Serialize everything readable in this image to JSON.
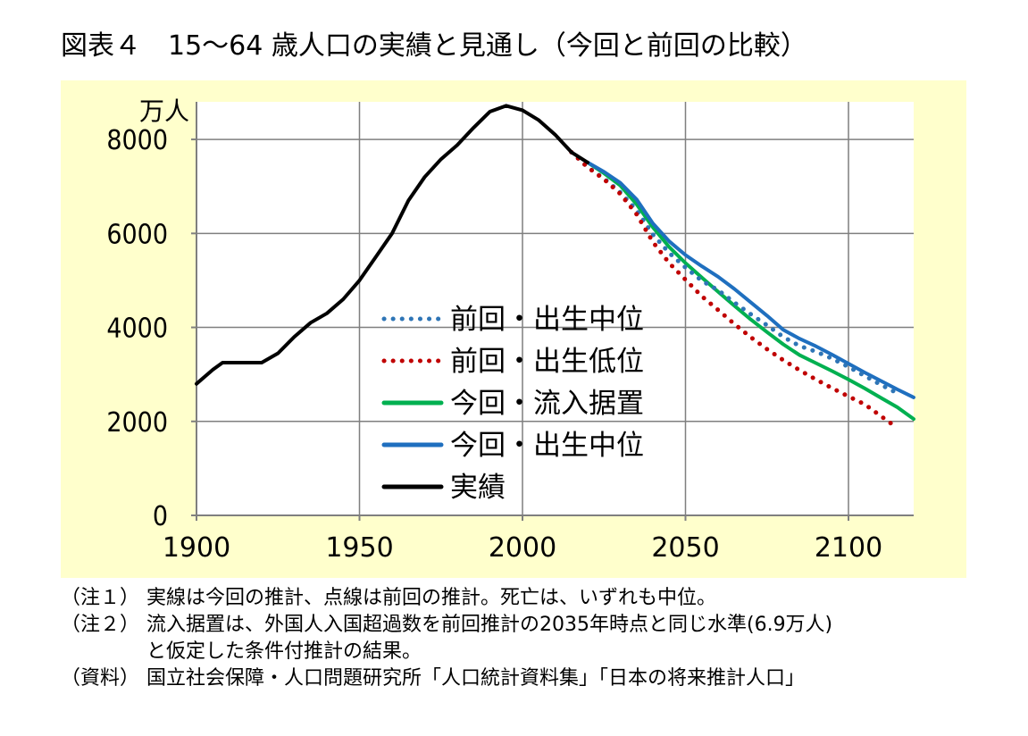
{
  "title": "図表４　15～64 歳人口の実績と見通し（今回と前回の比較）",
  "chart_data": {
    "type": "line",
    "title": "図表４　15～64 歳人口の実績と見通し（今回と前回の比較）",
    "ylabel": "万人",
    "xlim": [
      1900,
      2120
    ],
    "ylim": [
      0,
      8800
    ],
    "xticks": [
      1900,
      1950,
      2000,
      2050,
      2100
    ],
    "yticks": [
      0,
      2000,
      4000,
      6000,
      8000
    ],
    "grid": true,
    "legend_position": "center",
    "series": [
      {
        "name": "前回・出生中位",
        "style": "dotted",
        "color": "#2e75b6",
        "x": [
          2015,
          2020,
          2025,
          2030,
          2035,
          2040,
          2045,
          2050,
          2055,
          2060,
          2065,
          2070,
          2075,
          2080,
          2085,
          2090,
          2095,
          2100,
          2105,
          2110,
          2115
        ],
        "y": [
          7728,
          7406,
          7170,
          6875,
          6494,
          5978,
          5584,
          5275,
          4991,
          4793,
          4529,
          4283,
          4047,
          3797,
          3606,
          3485,
          3336,
          3160,
          2967,
          2776,
          2600
        ]
      },
      {
        "name": "前回・出生低位",
        "style": "dotted",
        "color": "#c00000",
        "x": [
          2015,
          2020,
          2025,
          2030,
          2035,
          2040,
          2045,
          2050,
          2055,
          2060,
          2065,
          2070,
          2075,
          2080,
          2085,
          2090,
          2095,
          2100,
          2105,
          2110,
          2113
        ],
        "y": [
          7728,
          7406,
          7153,
          6843,
          6407,
          5817,
          5368,
          5016,
          4663,
          4371,
          4072,
          3792,
          3538,
          3304,
          3088,
          2893,
          2707,
          2532,
          2362,
          2110,
          1960
        ]
      },
      {
        "name": "今回・流入据置",
        "style": "solid",
        "color": "#00b050",
        "x": [
          2020,
          2025,
          2030,
          2035,
          2040,
          2045,
          2050,
          2055,
          2060,
          2065,
          2070,
          2075,
          2080,
          2085,
          2090,
          2095,
          2100,
          2105,
          2110,
          2115,
          2120
        ],
        "y": [
          7509,
          7280,
          7020,
          6620,
          6130,
          5710,
          5370,
          5060,
          4760,
          4460,
          4170,
          3900,
          3640,
          3410,
          3240,
          3070,
          2890,
          2700,
          2500,
          2300,
          2050
        ]
      },
      {
        "name": "今回・出生中位",
        "style": "solid",
        "color": "#1f6fbf",
        "x": [
          2020,
          2025,
          2030,
          2035,
          2040,
          2045,
          2050,
          2055,
          2060,
          2065,
          2070,
          2075,
          2080,
          2085,
          2090,
          2095,
          2100,
          2105,
          2110,
          2115,
          2120
        ],
        "y": [
          7509,
          7310,
          7076,
          6722,
          6213,
          5832,
          5540,
          5300,
          5078,
          4819,
          4535,
          4250,
          3950,
          3760,
          3600,
          3420,
          3230,
          3040,
          2860,
          2680,
          2510
        ]
      },
      {
        "name": "実績",
        "style": "solid",
        "color": "#000000",
        "x": [
          1900,
          1905,
          1908,
          1910,
          1915,
          1920,
          1925,
          1930,
          1935,
          1940,
          1945,
          1950,
          1955,
          1960,
          1965,
          1970,
          1975,
          1980,
          1985,
          1990,
          1995,
          2000,
          2005,
          2010,
          2015,
          2020
        ],
        "y": [
          2800,
          3100,
          3250,
          3250,
          3250,
          3250,
          3450,
          3800,
          4100,
          4300,
          4600,
          5000,
          5500,
          6000,
          6700,
          7200,
          7580,
          7880,
          8250,
          8590,
          8716,
          8622,
          8409,
          8103,
          7728,
          7509
        ]
      }
    ]
  },
  "notes": [
    {
      "tag": "（注１）",
      "text": "実線は今回の推計、点線は前回の推計。死亡は、いずれも中位。"
    },
    {
      "tag": "（注２）",
      "text": "流入据置は、外国人入国超過数を前回推計の2035年時点と同じ水準(6.9万人)"
    },
    {
      "tag": "",
      "text": "と仮定した条件付推計の結果。"
    },
    {
      "tag": "（資料）",
      "text": "国立社会保障・人口問題研究所「人口統計資料集」「日本の将来推計人口」"
    }
  ]
}
